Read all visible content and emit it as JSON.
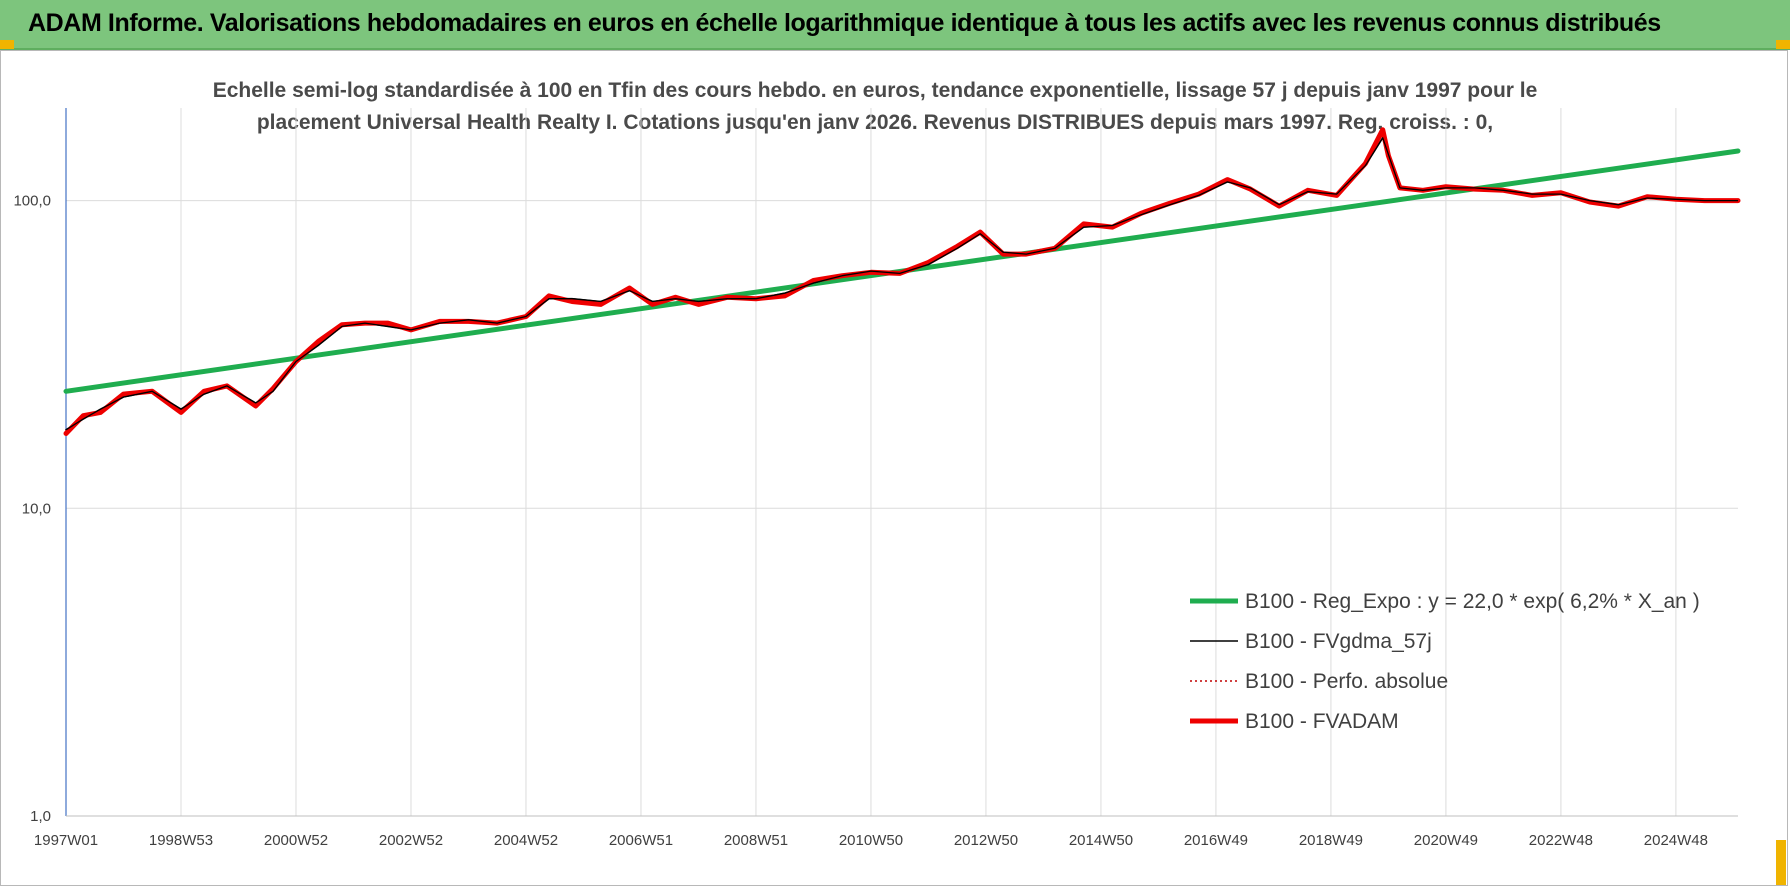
{
  "banner": {
    "title": "ADAM Informe. Valorisations hebdomadaires en euros en échelle logarithmique identique à tous les actifs avec les revenus connus distribués"
  },
  "chart_data": {
    "type": "line",
    "title_line1": "Echelle semi-log standardisée à 100 en Tfin des cours hebdo. en euros, tendance exponentielle, lissage 57 j depuis janv 1997 pour le",
    "title_line2": "placement Universal Health Realty I. Cotations jusqu'en janv 2026. Revenus DISTRIBUES depuis mars 1997. Reg. croiss. : 0,",
    "y_scale": "log",
    "ylim": [
      1,
      200
    ],
    "y_ticks": [
      {
        "value": 1,
        "label": "1,0"
      },
      {
        "value": 10,
        "label": "10,0"
      },
      {
        "value": 100,
        "label": "100,0"
      }
    ],
    "x_range": [
      1997.0,
      2026.08
    ],
    "x_ticks": [
      {
        "value": 1997.0,
        "label": "1997W01"
      },
      {
        "value": 1999.0,
        "label": "1998W53"
      },
      {
        "value": 2001.0,
        "label": "2000W52"
      },
      {
        "value": 2003.0,
        "label": "2002W52"
      },
      {
        "value": 2005.0,
        "label": "2004W52"
      },
      {
        "value": 2007.0,
        "label": "2006W51"
      },
      {
        "value": 2009.0,
        "label": "2008W51"
      },
      {
        "value": 2011.0,
        "label": "2010W50"
      },
      {
        "value": 2013.0,
        "label": "2012W50"
      },
      {
        "value": 2015.0,
        "label": "2014W50"
      },
      {
        "value": 2017.0,
        "label": "2016W49"
      },
      {
        "value": 2019.0,
        "label": "2018W49"
      },
      {
        "value": 2021.0,
        "label": "2020W49"
      },
      {
        "value": 2023.0,
        "label": "2022W48"
      },
      {
        "value": 2025.0,
        "label": "2024W48"
      }
    ],
    "grid": "vertical-and-horizontal",
    "legend_position": "bottom-right",
    "series": [
      {
        "name": "B100 - Reg_Expo : y = 22,0 * exp( 6,2% *  X_an )",
        "color": "#1fad4f",
        "style": "solid-thick",
        "x": [
          1997.0,
          2026.08
        ],
        "y": [
          24.0,
          145.0
        ]
      },
      {
        "name": "B100 - FVgdma_57j",
        "color": "#000000",
        "style": "solid-thin",
        "x": [
          1997.0,
          1997.3,
          1997.6,
          1998.0,
          1998.5,
          1999.0,
          1999.4,
          1999.8,
          2000.3,
          2000.6,
          2001.0,
          2001.4,
          2001.8,
          2002.2,
          2002.6,
          2003.0,
          2003.5,
          2004.0,
          2004.5,
          2005.0,
          2005.4,
          2005.8,
          2006.3,
          2006.8,
          2007.2,
          2007.6,
          2008.0,
          2008.5,
          2009.0,
          2009.5,
          2010.0,
          2010.5,
          2011.0,
          2011.5,
          2012.0,
          2012.5,
          2012.9,
          2013.3,
          2013.7,
          2014.2,
          2014.7,
          2015.2,
          2015.7,
          2016.2,
          2016.7,
          2017.2,
          2017.6,
          2018.1,
          2018.6,
          2019.1,
          2019.6,
          2019.9,
          2020.2,
          2020.6,
          2021.0,
          2021.5,
          2022.0,
          2022.5,
          2023.0,
          2023.5,
          2024.0,
          2024.5,
          2025.0,
          2025.5,
          2026.08
        ],
        "y": [
          18.0,
          19.5,
          21.0,
          23.0,
          24.0,
          21.0,
          23.5,
          25.0,
          22.0,
          24.0,
          30.0,
          34.0,
          39.0,
          40.0,
          39.0,
          38.0,
          40.0,
          41.0,
          40.0,
          42.0,
          48.0,
          48.0,
          47.0,
          51.0,
          47.0,
          48.0,
          47.0,
          48.0,
          48.0,
          50.0,
          54.0,
          57.0,
          59.0,
          58.0,
          62.0,
          70.0,
          78.0,
          68.0,
          67.0,
          70.0,
          82.0,
          83.0,
          90.0,
          97.0,
          104.0,
          115.0,
          110.0,
          97.0,
          107.0,
          105.0,
          130.0,
          160.0,
          110.0,
          108.0,
          110.0,
          110.0,
          108.0,
          105.0,
          105.0,
          100.0,
          97.0,
          102.0,
          101.0,
          100.0,
          100.0
        ]
      },
      {
        "name": "B100 - Perfo. absolue",
        "color": "#c00000",
        "style": "dotted",
        "x": [
          1997.0,
          2026.08
        ],
        "y": [
          18.0,
          100.0
        ]
      },
      {
        "name": "B100 - FVADAM",
        "color": "#ee0000",
        "style": "solid-thick",
        "x": [
          1997.0,
          1997.3,
          1997.6,
          1998.0,
          1998.5,
          1999.0,
          1999.4,
          1999.8,
          2000.3,
          2000.6,
          2001.0,
          2001.4,
          2001.8,
          2002.2,
          2002.6,
          2003.0,
          2003.5,
          2004.0,
          2004.5,
          2005.0,
          2005.4,
          2005.8,
          2006.3,
          2006.8,
          2007.2,
          2007.6,
          2008.0,
          2008.5,
          2009.0,
          2009.5,
          2010.0,
          2010.5,
          2011.0,
          2011.5,
          2012.0,
          2012.5,
          2012.9,
          2013.3,
          2013.7,
          2014.2,
          2014.7,
          2015.2,
          2015.7,
          2016.2,
          2016.7,
          2017.2,
          2017.6,
          2018.1,
          2018.6,
          2019.1,
          2019.6,
          2019.9,
          2020.0,
          2020.2,
          2020.6,
          2021.0,
          2021.5,
          2022.0,
          2022.5,
          2023.0,
          2023.5,
          2024.0,
          2024.5,
          2025.0,
          2025.5,
          2026.08
        ],
        "y": [
          17.5,
          20.0,
          20.5,
          23.5,
          24.0,
          20.5,
          24.0,
          25.0,
          21.5,
          24.5,
          30.0,
          35.0,
          39.5,
          40.0,
          40.0,
          38.0,
          40.5,
          40.5,
          40.0,
          42.0,
          49.0,
          47.0,
          46.0,
          52.0,
          46.0,
          48.5,
          46.0,
          48.5,
          48.0,
          49.0,
          55.0,
          57.0,
          58.5,
          58.0,
          63.0,
          71.0,
          79.0,
          67.0,
          67.0,
          70.0,
          84.0,
          82.0,
          91.0,
          98.0,
          105.0,
          117.0,
          109.0,
          96.0,
          108.0,
          104.0,
          132.0,
          170.0,
          140.0,
          110.0,
          108.0,
          111.0,
          109.0,
          108.0,
          104.0,
          106.0,
          99.0,
          96.0,
          103.0,
          101.0,
          100.0,
          100.0
        ]
      }
    ]
  }
}
